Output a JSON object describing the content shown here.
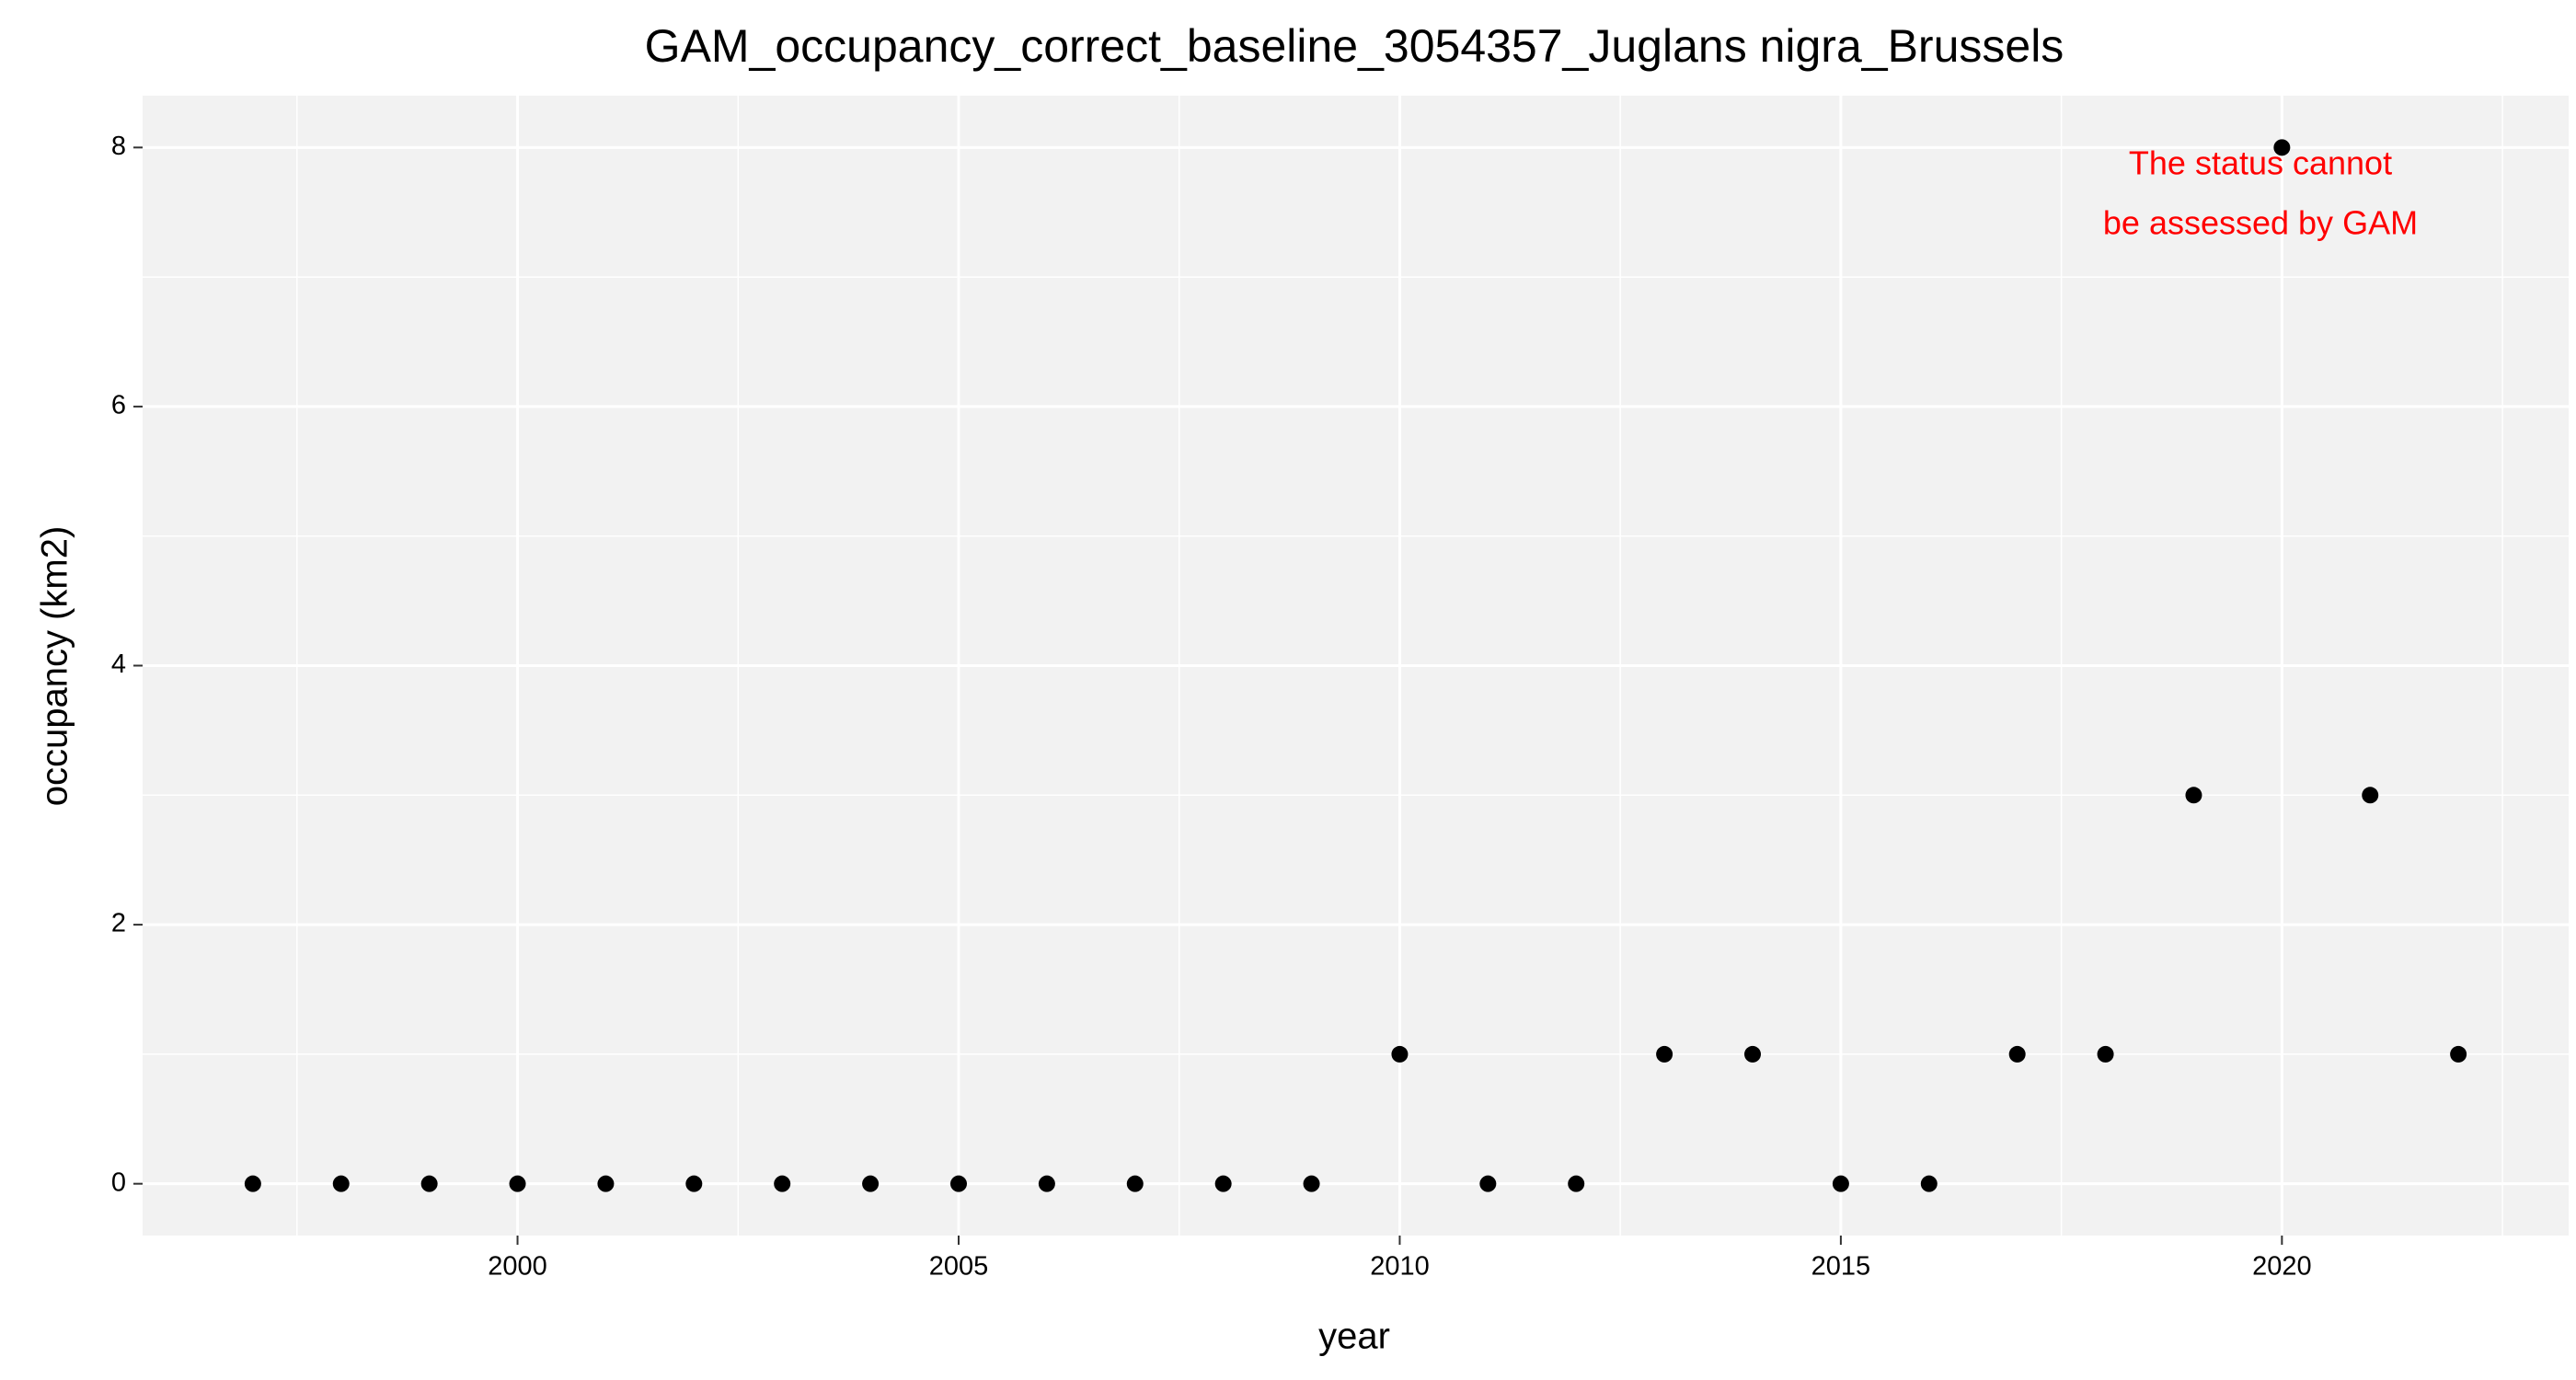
{
  "chart_data": {
    "type": "scatter",
    "title": "GAM_occupancy_correct_baseline_3054357_Juglans nigra_Brussels",
    "x_label": "year",
    "y_label": "occupancy (km2)",
    "x": [
      1997,
      1998,
      1999,
      2000,
      2001,
      2002,
      2003,
      2004,
      2005,
      2006,
      2007,
      2008,
      2009,
      2010,
      2011,
      2012,
      2013,
      2014,
      2015,
      2016,
      2017,
      2018,
      2019,
      2020,
      2021,
      2022
    ],
    "values": [
      0,
      0,
      0,
      0,
      0,
      0,
      0,
      0,
      0,
      0,
      0,
      0,
      0,
      1,
      0,
      0,
      1,
      1,
      0,
      0,
      1,
      1,
      3,
      8,
      3,
      1
    ],
    "color": "#000000",
    "xlim": [
      1995.75,
      2023.25
    ],
    "xticks": [
      2000,
      2005,
      2010,
      2015,
      2020
    ],
    "ylim": [
      -0.4,
      8.4
    ],
    "yticks": [
      0,
      2,
      4,
      6,
      8
    ],
    "grid": true,
    "annotation": {
      "lines": [
        "The status cannot",
        "be assessed by GAM"
      ],
      "color": "#ff0000"
    }
  }
}
